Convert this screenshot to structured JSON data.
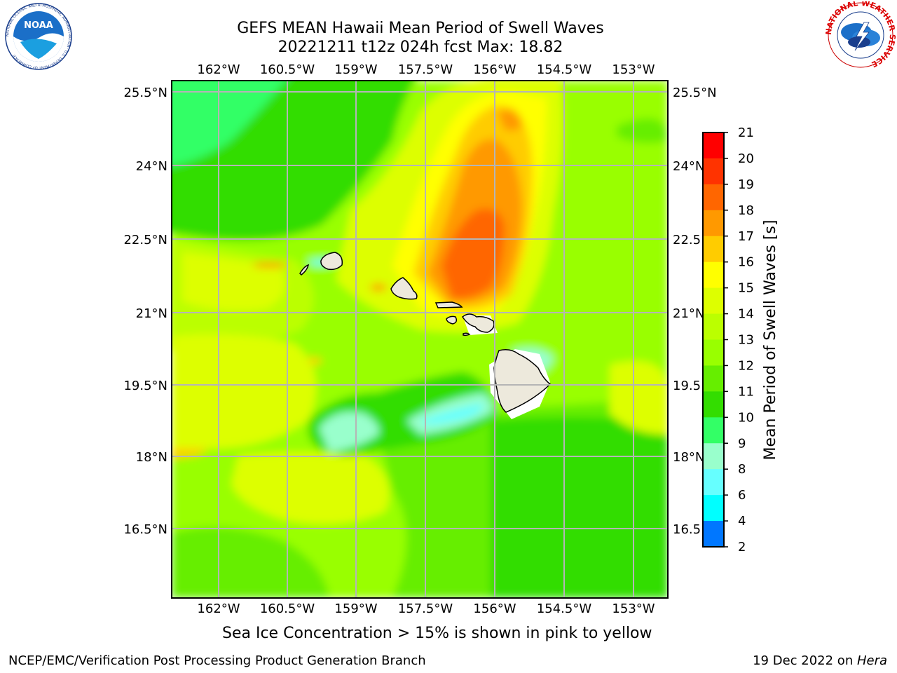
{
  "title_line1": "GEFS MEAN Hawaii Mean Period of Swell Waves",
  "title_line2": "20221211 t12z 024h fcst   Max: 18.82",
  "caption": "Sea Ice Concentration > 15% is shown in pink to yellow",
  "footer_left": "NCEP/EMC/Verification Post Processing Product Generation Branch",
  "footer_right_prefix": "19 Dec 2022 on ",
  "footer_right_host": "Hera",
  "map": {
    "lon_labels": [
      "162°W",
      "160.5°W",
      "159°W",
      "157.5°W",
      "156°W",
      "154.5°W",
      "153°W"
    ],
    "lat_labels": [
      "25.5°N",
      "24°N",
      "22.5°N",
      "21°N",
      "19.5°N",
      "18°N",
      "16.5°N"
    ]
  },
  "colorbar": {
    "label": "Mean Period of Swell Waves [s]",
    "ticks": [
      "21",
      "20",
      "19",
      "18",
      "17",
      "16",
      "15",
      "14",
      "13",
      "12",
      "11",
      "10",
      "9",
      "8",
      "6",
      "4",
      "2"
    ],
    "colors": [
      "#ff0000",
      "#ff3300",
      "#ff6600",
      "#ff9900",
      "#ffcc00",
      "#ffff00",
      "#ddff00",
      "#bbff00",
      "#99ff00",
      "#66ee00",
      "#33dd00",
      "#33ff66",
      "#99ffcc",
      "#66ffff",
      "#00ffff",
      "#0077ff",
      "#0000ff"
    ]
  },
  "logos": {
    "noaa_text": "NOAA",
    "noaa_ring": "NATIONAL OCEANIC AND ATMOSPHERIC ADMINISTRATION · U.S. DEPARTMENT OF COMMERCE",
    "nws_ring": "NATIONAL WEATHER SERVICE"
  }
}
